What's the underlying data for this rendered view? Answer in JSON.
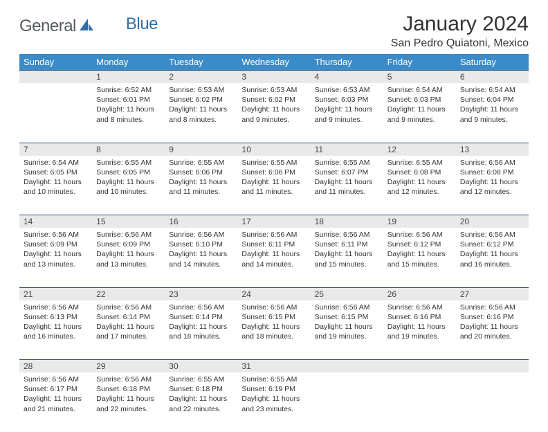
{
  "brand": {
    "part1": "General",
    "part2": "Blue"
  },
  "title": "January 2024",
  "subtitle": "San Pedro Quiatoni, Mexico",
  "colors": {
    "header_bg": "#3b8bc9",
    "header_fg": "#ffffff",
    "daynum_bg": "#e9e9e9",
    "rule": "#2b4a6a",
    "logo_gray": "#555a5e",
    "logo_blue": "#2f6fa7"
  },
  "day_headers": [
    "Sunday",
    "Monday",
    "Tuesday",
    "Wednesday",
    "Thursday",
    "Friday",
    "Saturday"
  ],
  "weeks": [
    {
      "nums": [
        "",
        "1",
        "2",
        "3",
        "4",
        "5",
        "6"
      ],
      "cells": [
        {
          "lines": []
        },
        {
          "lines": [
            "Sunrise: 6:52 AM",
            "Sunset: 6:01 PM",
            "Daylight: 11 hours",
            "and 8 minutes."
          ]
        },
        {
          "lines": [
            "Sunrise: 6:53 AM",
            "Sunset: 6:02 PM",
            "Daylight: 11 hours",
            "and 8 minutes."
          ]
        },
        {
          "lines": [
            "Sunrise: 6:53 AM",
            "Sunset: 6:02 PM",
            "Daylight: 11 hours",
            "and 9 minutes."
          ]
        },
        {
          "lines": [
            "Sunrise: 6:53 AM",
            "Sunset: 6:03 PM",
            "Daylight: 11 hours",
            "and 9 minutes."
          ]
        },
        {
          "lines": [
            "Sunrise: 6:54 AM",
            "Sunset: 6:03 PM",
            "Daylight: 11 hours",
            "and 9 minutes."
          ]
        },
        {
          "lines": [
            "Sunrise: 6:54 AM",
            "Sunset: 6:04 PM",
            "Daylight: 11 hours",
            "and 9 minutes."
          ]
        }
      ]
    },
    {
      "nums": [
        "7",
        "8",
        "9",
        "10",
        "11",
        "12",
        "13"
      ],
      "cells": [
        {
          "lines": [
            "Sunrise: 6:54 AM",
            "Sunset: 6:05 PM",
            "Daylight: 11 hours",
            "and 10 minutes."
          ]
        },
        {
          "lines": [
            "Sunrise: 6:55 AM",
            "Sunset: 6:05 PM",
            "Daylight: 11 hours",
            "and 10 minutes."
          ]
        },
        {
          "lines": [
            "Sunrise: 6:55 AM",
            "Sunset: 6:06 PM",
            "Daylight: 11 hours",
            "and 11 minutes."
          ]
        },
        {
          "lines": [
            "Sunrise: 6:55 AM",
            "Sunset: 6:06 PM",
            "Daylight: 11 hours",
            "and 11 minutes."
          ]
        },
        {
          "lines": [
            "Sunrise: 6:55 AM",
            "Sunset: 6:07 PM",
            "Daylight: 11 hours",
            "and 11 minutes."
          ]
        },
        {
          "lines": [
            "Sunrise: 6:55 AM",
            "Sunset: 6:08 PM",
            "Daylight: 11 hours",
            "and 12 minutes."
          ]
        },
        {
          "lines": [
            "Sunrise: 6:56 AM",
            "Sunset: 6:08 PM",
            "Daylight: 11 hours",
            "and 12 minutes."
          ]
        }
      ]
    },
    {
      "nums": [
        "14",
        "15",
        "16",
        "17",
        "18",
        "19",
        "20"
      ],
      "cells": [
        {
          "lines": [
            "Sunrise: 6:56 AM",
            "Sunset: 6:09 PM",
            "Daylight: 11 hours",
            "and 13 minutes."
          ]
        },
        {
          "lines": [
            "Sunrise: 6:56 AM",
            "Sunset: 6:09 PM",
            "Daylight: 11 hours",
            "and 13 minutes."
          ]
        },
        {
          "lines": [
            "Sunrise: 6:56 AM",
            "Sunset: 6:10 PM",
            "Daylight: 11 hours",
            "and 14 minutes."
          ]
        },
        {
          "lines": [
            "Sunrise: 6:56 AM",
            "Sunset: 6:11 PM",
            "Daylight: 11 hours",
            "and 14 minutes."
          ]
        },
        {
          "lines": [
            "Sunrise: 6:56 AM",
            "Sunset: 6:11 PM",
            "Daylight: 11 hours",
            "and 15 minutes."
          ]
        },
        {
          "lines": [
            "Sunrise: 6:56 AM",
            "Sunset: 6:12 PM",
            "Daylight: 11 hours",
            "and 15 minutes."
          ]
        },
        {
          "lines": [
            "Sunrise: 6:56 AM",
            "Sunset: 6:12 PM",
            "Daylight: 11 hours",
            "and 16 minutes."
          ]
        }
      ]
    },
    {
      "nums": [
        "21",
        "22",
        "23",
        "24",
        "25",
        "26",
        "27"
      ],
      "cells": [
        {
          "lines": [
            "Sunrise: 6:56 AM",
            "Sunset: 6:13 PM",
            "Daylight: 11 hours",
            "and 16 minutes."
          ]
        },
        {
          "lines": [
            "Sunrise: 6:56 AM",
            "Sunset: 6:14 PM",
            "Daylight: 11 hours",
            "and 17 minutes."
          ]
        },
        {
          "lines": [
            "Sunrise: 6:56 AM",
            "Sunset: 6:14 PM",
            "Daylight: 11 hours",
            "and 18 minutes."
          ]
        },
        {
          "lines": [
            "Sunrise: 6:56 AM",
            "Sunset: 6:15 PM",
            "Daylight: 11 hours",
            "and 18 minutes."
          ]
        },
        {
          "lines": [
            "Sunrise: 6:56 AM",
            "Sunset: 6:15 PM",
            "Daylight: 11 hours",
            "and 19 minutes."
          ]
        },
        {
          "lines": [
            "Sunrise: 6:56 AM",
            "Sunset: 6:16 PM",
            "Daylight: 11 hours",
            "and 19 minutes."
          ]
        },
        {
          "lines": [
            "Sunrise: 6:56 AM",
            "Sunset: 6:16 PM",
            "Daylight: 11 hours",
            "and 20 minutes."
          ]
        }
      ]
    },
    {
      "nums": [
        "28",
        "29",
        "30",
        "31",
        "",
        "",
        ""
      ],
      "cells": [
        {
          "lines": [
            "Sunrise: 6:56 AM",
            "Sunset: 6:17 PM",
            "Daylight: 11 hours",
            "and 21 minutes."
          ]
        },
        {
          "lines": [
            "Sunrise: 6:56 AM",
            "Sunset: 6:18 PM",
            "Daylight: 11 hours",
            "and 22 minutes."
          ]
        },
        {
          "lines": [
            "Sunrise: 6:55 AM",
            "Sunset: 6:18 PM",
            "Daylight: 11 hours",
            "and 22 minutes."
          ]
        },
        {
          "lines": [
            "Sunrise: 6:55 AM",
            "Sunset: 6:19 PM",
            "Daylight: 11 hours",
            "and 23 minutes."
          ]
        },
        {
          "lines": []
        },
        {
          "lines": []
        },
        {
          "lines": []
        }
      ]
    }
  ]
}
